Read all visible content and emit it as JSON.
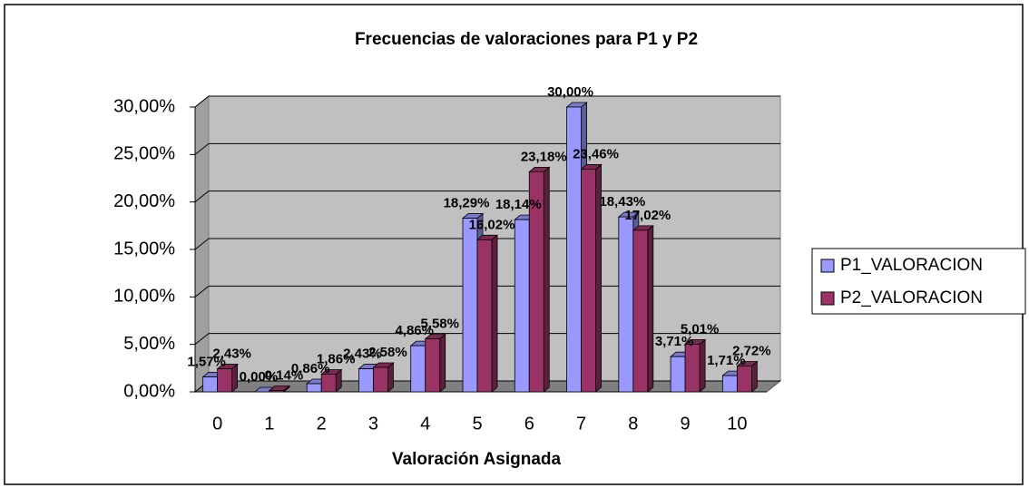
{
  "chart_data": {
    "type": "bar3d",
    "title": "Frecuencias de valoraciones para P1 y P2",
    "x_label": "Valoración Asignada",
    "categories": [
      "0",
      "1",
      "2",
      "3",
      "4",
      "5",
      "6",
      "7",
      "8",
      "9",
      "10"
    ],
    "series": [
      {
        "name": "P1_VALORACION",
        "color": "#9999ff",
        "values": [
          1.57,
          0.0,
          0.86,
          2.43,
          4.86,
          18.29,
          18.14,
          30.0,
          18.43,
          3.71,
          1.71
        ],
        "value_labels": [
          "1,57%",
          "0,00%",
          "0,86%",
          "2,43%",
          "4,86%",
          "18,29%",
          "18,14%",
          "30,00%",
          "18,43%",
          "3,71%",
          "1,71%"
        ]
      },
      {
        "name": "P2_VALORACION",
        "color": "#993366",
        "values": [
          2.43,
          0.14,
          1.86,
          2.58,
          5.58,
          16.02,
          23.18,
          23.46,
          17.02,
          5.01,
          2.72
        ],
        "value_labels": [
          "2,43%",
          "0,14%",
          "1,86%",
          "2,58%",
          "5,58%",
          "16,02%",
          "23,18%",
          "23,46%",
          "17,02%",
          "5,01%",
          "2,72%"
        ]
      }
    ],
    "ylim": [
      0,
      30
    ],
    "yticks": [
      {
        "value": 0,
        "label": "0,00%"
      },
      {
        "value": 5,
        "label": "5,00%"
      },
      {
        "value": 10,
        "label": "10,00%"
      },
      {
        "value": 15,
        "label": "15,00%"
      },
      {
        "value": 20,
        "label": "20,00%"
      },
      {
        "value": 25,
        "label": "25,00%"
      },
      {
        "value": 30,
        "label": "30,00%"
      }
    ],
    "grid": true,
    "legend": "right"
  }
}
